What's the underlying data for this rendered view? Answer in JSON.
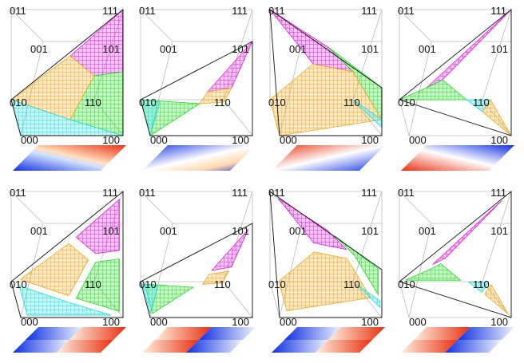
{
  "figure": {
    "vertex_labels": {
      "v000": "000",
      "v001": "001",
      "v010": "010",
      "v011": "011",
      "v100": "100",
      "v101": "101",
      "v110": "110",
      "v111": "111"
    },
    "colors": {
      "magenta": "#e020e0",
      "green": "#22dd22",
      "cyan": "#22dddd",
      "orange": "#f0a820",
      "cube_edge": "#bbbbbb",
      "outline": "#111111",
      "ramp_low": "#1030e0",
      "ramp_mid": "#ffffff",
      "ramp_high": "#e83010"
    },
    "rows": [
      {
        "row": "top",
        "panels": [
          "surface-a",
          "surface-b",
          "surface-c",
          "surface-d"
        ],
        "strip_kind": "continuous"
      },
      {
        "row": "bottom",
        "panels": [
          "surface-a-split",
          "surface-b-split",
          "surface-c-split",
          "surface-d-split"
        ],
        "strip_kind": "quadrant"
      }
    ]
  }
}
